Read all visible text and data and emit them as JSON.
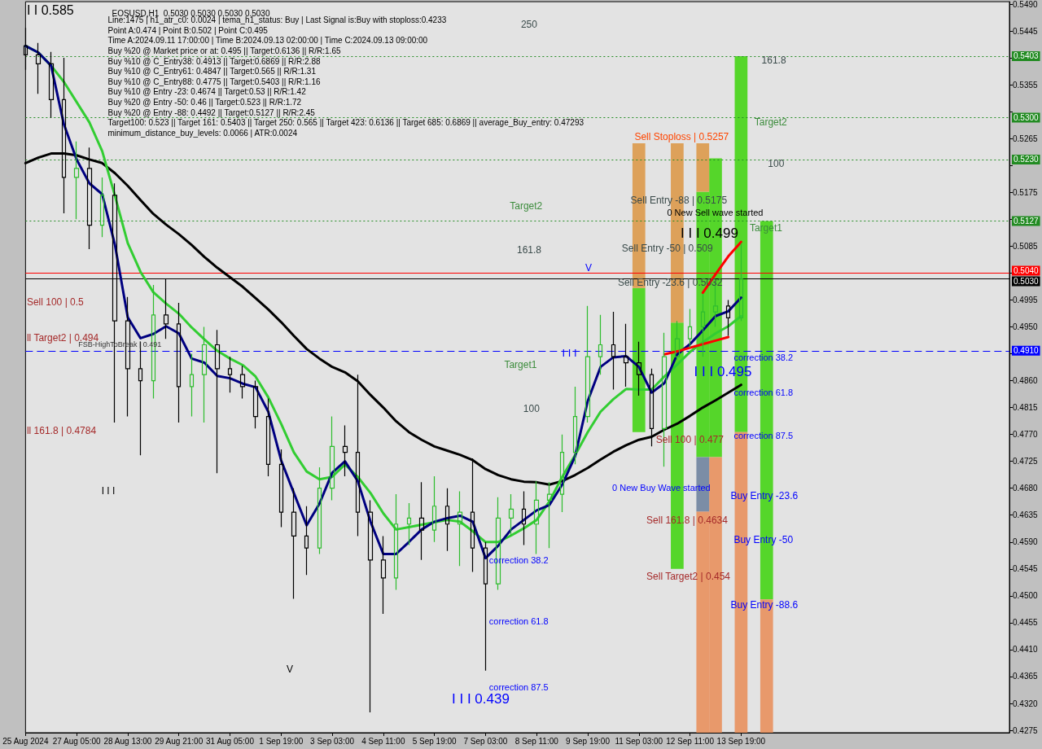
{
  "chart_data": {
    "type": "candlestick",
    "title": "EOSUSD,H1  0.5030 0.5030 0.5030 0.5030",
    "categories": [
      "25 Aug 2024",
      null,
      null,
      null,
      "27 Aug 05:00",
      null,
      null,
      null,
      "28 Aug 13:00",
      null,
      null,
      null,
      "29 Aug 21:00",
      null,
      null,
      null,
      "31 Aug 05:00",
      null,
      null,
      null,
      "1 Sep 19:00",
      null,
      null,
      null,
      "3 Sep 03:00",
      null,
      null,
      null,
      "4 Sep 11:00",
      null,
      null,
      null,
      "5 Sep 19:00",
      null,
      null,
      null,
      "7 Sep 03:00",
      null,
      null,
      null,
      "8 Sep 11:00",
      null,
      null,
      null,
      "9 Sep 19:00",
      null,
      null,
      null,
      "11 Sep 03:00",
      null,
      null,
      null,
      "12 Sep 11:00",
      null,
      null,
      null,
      "13 Sep 19:00",
      null,
      null,
      null,
      null,
      null,
      null,
      null,
      null,
      null,
      null,
      null,
      null,
      null,
      null,
      null,
      null,
      null,
      null,
      null,
      null,
      null
    ],
    "ohlc": [
      [
        0.542,
        0.545,
        0.538,
        0.5405
      ],
      [
        0.5405,
        0.5425,
        0.534,
        0.539
      ],
      [
        0.539,
        0.541,
        0.53,
        0.533
      ],
      [
        0.533,
        0.54,
        0.514,
        0.52
      ],
      [
        0.52,
        0.526,
        0.513,
        0.5215
      ],
      [
        0.5215,
        0.525,
        0.508,
        0.512
      ],
      [
        0.512,
        0.52,
        0.51,
        0.517
      ],
      [
        0.517,
        0.519,
        0.479,
        0.496
      ],
      [
        0.496,
        0.5,
        0.48,
        0.488
      ],
      [
        0.488,
        0.4925,
        0.4735,
        0.486
      ],
      [
        0.486,
        0.502,
        0.483,
        0.497
      ],
      [
        0.497,
        0.503,
        0.493,
        0.4955
      ],
      [
        0.4955,
        0.499,
        0.479,
        0.485
      ],
      [
        0.485,
        0.4905,
        0.48,
        0.487
      ],
      [
        0.487,
        0.495,
        0.479,
        0.492
      ],
      [
        0.492,
        0.4945,
        0.4705,
        0.488
      ],
      [
        0.488,
        0.49,
        0.484,
        0.487
      ],
      [
        0.487,
        0.4885,
        0.483,
        0.485
      ],
      [
        0.485,
        0.486,
        0.478,
        0.48
      ],
      [
        0.48,
        0.483,
        0.47,
        0.472
      ],
      [
        0.472,
        0.4745,
        0.4615,
        0.464
      ],
      [
        0.464,
        0.468,
        0.4495,
        0.46
      ],
      [
        0.46,
        0.465,
        0.4535,
        0.458
      ],
      [
        0.458,
        0.4715,
        0.457,
        0.468
      ],
      [
        0.468,
        0.48,
        0.466,
        0.475
      ],
      [
        0.475,
        0.4785,
        0.47,
        0.474
      ],
      [
        0.474,
        0.487,
        0.46,
        0.464
      ],
      [
        0.464,
        0.466,
        0.4305,
        0.456
      ],
      [
        0.456,
        0.46,
        0.447,
        0.453
      ],
      [
        0.453,
        0.467,
        0.451,
        0.462
      ],
      [
        0.462,
        0.4655,
        0.4585,
        0.463
      ],
      [
        0.463,
        0.469,
        0.456,
        0.461
      ],
      [
        0.461,
        0.47,
        0.459,
        0.465
      ],
      [
        0.465,
        0.468,
        0.4575,
        0.462
      ],
      [
        0.462,
        0.4675,
        0.455,
        0.464
      ],
      [
        0.464,
        0.473,
        0.454,
        0.458
      ],
      [
        0.458,
        0.459,
        0.4375,
        0.452
      ],
      [
        0.452,
        0.4665,
        0.451,
        0.463
      ],
      [
        0.463,
        0.467,
        0.46,
        0.4645
      ],
      [
        0.4645,
        0.4675,
        0.4585,
        0.462
      ],
      [
        0.462,
        0.4692,
        0.457,
        0.466
      ],
      [
        0.466,
        0.469,
        0.458,
        0.467
      ],
      [
        0.467,
        0.477,
        0.464,
        0.474
      ],
      [
        0.474,
        0.485,
        0.472,
        0.48
      ],
      [
        0.48,
        0.4985,
        0.479,
        0.49
      ],
      [
        0.49,
        0.497,
        0.487,
        0.492
      ],
      [
        0.492,
        0.4975,
        0.4845,
        0.49
      ],
      [
        0.49,
        0.4955,
        0.485,
        0.489
      ],
      [
        0.489,
        0.4925,
        0.4835,
        0.487
      ],
      [
        0.487,
        0.488,
        0.475,
        0.478
      ],
      [
        0.478,
        0.494,
        0.4716,
        0.49
      ],
      [
        0.49,
        0.496,
        0.4895,
        0.493
      ],
      [
        0.493,
        0.498,
        0.4915,
        0.495
      ],
      [
        0.495,
        0.5005,
        0.49,
        0.4975
      ],
      [
        0.4975,
        0.5025,
        0.495,
        0.4985
      ],
      [
        0.4985,
        0.4995,
        0.4935,
        0.4965
      ],
      [
        0.4965,
        0.509,
        0.496,
        0.503
      ],
      null,
      null,
      null,
      null,
      null,
      null,
      null,
      null,
      null,
      null,
      null,
      null,
      null,
      null,
      null,
      null,
      null,
      null,
      null,
      null,
      null
    ],
    "colors": [
      "#000000",
      "#000000",
      "#000000",
      "#000000",
      "#2ebd2e",
      "#000000",
      "#2ebd2e",
      "#000000",
      "#000000",
      "#000000",
      "#2ebd2e",
      "#000000",
      "#000000",
      "#2ebd2e",
      "#2ebd2e",
      "#000000",
      "#000000",
      "#000000",
      "#000000",
      "#000000",
      "#000000",
      "#000000",
      "#000000",
      "#2ebd2e",
      "#2ebd2e",
      "#000000",
      "#000000",
      "#000000",
      "#000000",
      "#2ebd2e",
      "#2ebd2e",
      "#000000",
      "#2ebd2e",
      "#000000",
      "#2ebd2e",
      "#000000",
      "#000000",
      "#2ebd2e",
      "#2ebd2e",
      "#000000",
      "#2ebd2e",
      "#2ebd2e",
      "#2ebd2e",
      "#2ebd2e",
      "#2ebd2e",
      "#2ebd2e",
      "#000000",
      "#000000",
      "#000000",
      "#000000",
      "#2ebd2e",
      "#2ebd2e",
      "#2ebd2e",
      "#2ebd2e",
      "#2ebd2e",
      "#000000",
      "#2ebd2e",
      null,
      null,
      null,
      null,
      null,
      null,
      null,
      null,
      null,
      null,
      null,
      null,
      null,
      null,
      null,
      null,
      null,
      null,
      null,
      null,
      null
    ],
    "series": [
      {
        "type": "bar",
        "color": "#55d62a",
        "base": [
          null,
          null,
          null,
          null,
          null,
          null,
          null,
          null,
          null,
          null,
          null,
          null,
          null,
          null,
          null,
          null,
          null,
          null,
          null,
          null,
          null,
          null,
          null,
          null,
          null,
          null,
          null,
          null,
          null,
          null,
          null,
          null,
          null,
          null,
          null,
          null,
          null,
          null,
          null,
          null,
          null,
          null,
          null,
          null,
          null,
          null,
          null,
          null,
          0.4774,
          null,
          null,
          0.4545,
          null,
          0.4732,
          0.4732,
          null,
          0.4774,
          null,
          0.4494,
          null,
          null,
          null,
          null,
          null,
          null,
          null,
          null,
          null,
          null,
          null,
          null,
          null,
          null,
          null,
          null,
          null,
          null,
          null
        ],
        "values": [
          null,
          null,
          null,
          null,
          null,
          null,
          null,
          null,
          null,
          null,
          null,
          null,
          null,
          null,
          null,
          null,
          null,
          null,
          null,
          null,
          null,
          null,
          null,
          null,
          null,
          null,
          null,
          null,
          null,
          null,
          null,
          null,
          null,
          null,
          null,
          null,
          null,
          null,
          null,
          null,
          null,
          null,
          null,
          null,
          null,
          null,
          null,
          null,
          0.0241,
          null,
          null,
          0.0412,
          null,
          0.0444,
          0.05,
          null,
          0.0629,
          null,
          0.0633,
          null,
          null,
          null,
          null,
          null,
          null,
          null,
          null,
          null,
          null,
          null,
          null,
          null,
          null,
          null,
          null,
          null,
          null,
          null
        ]
      },
      {
        "type": "bar",
        "color": "#dda15a",
        "base": [
          null,
          null,
          null,
          null,
          null,
          null,
          null,
          null,
          null,
          null,
          null,
          null,
          null,
          null,
          null,
          null,
          null,
          null,
          null,
          null,
          null,
          null,
          null,
          null,
          null,
          null,
          null,
          null,
          null,
          null,
          null,
          null,
          null,
          null,
          null,
          null,
          null,
          null,
          null,
          null,
          null,
          null,
          null,
          null,
          null,
          null,
          null,
          null,
          0.5015,
          null,
          null,
          0.4957,
          null,
          0.5176,
          null,
          null,
          null,
          null,
          null,
          null,
          null,
          null,
          null,
          null,
          null,
          null,
          null,
          null,
          null,
          null,
          null,
          null,
          null,
          null,
          null,
          null,
          null,
          null
        ],
        "values": [
          null,
          null,
          null,
          null,
          null,
          null,
          null,
          null,
          null,
          null,
          null,
          null,
          null,
          null,
          null,
          null,
          null,
          null,
          null,
          null,
          null,
          null,
          null,
          null,
          null,
          null,
          null,
          null,
          null,
          null,
          null,
          null,
          null,
          null,
          null,
          null,
          null,
          null,
          null,
          null,
          null,
          null,
          null,
          null,
          null,
          null,
          null,
          null,
          0.0242,
          null,
          null,
          0.03,
          null,
          0.0081,
          null,
          null,
          null,
          null,
          null,
          null,
          null,
          null,
          null,
          null,
          null,
          null,
          null,
          null,
          null,
          null,
          null,
          null,
          null,
          null,
          null,
          null,
          null,
          null
        ]
      },
      {
        "type": "bar",
        "color": "#e8996b",
        "base": [
          null,
          null,
          null,
          null,
          null,
          null,
          null,
          null,
          null,
          null,
          null,
          null,
          null,
          null,
          null,
          null,
          null,
          null,
          null,
          null,
          null,
          null,
          null,
          null,
          null,
          null,
          null,
          null,
          null,
          null,
          null,
          null,
          null,
          null,
          null,
          null,
          null,
          null,
          null,
          null,
          null,
          null,
          null,
          null,
          null,
          null,
          null,
          null,
          null,
          null,
          null,
          null,
          null,
          0.4271,
          0.4271,
          null,
          0.4271,
          null,
          0.4271,
          null,
          null,
          null,
          null,
          null,
          null,
          null,
          null,
          null,
          null,
          null,
          null,
          null,
          null,
          null,
          null,
          null,
          null,
          null
        ],
        "values": [
          null,
          null,
          null,
          null,
          null,
          null,
          null,
          null,
          null,
          null,
          null,
          null,
          null,
          null,
          null,
          null,
          null,
          null,
          null,
          null,
          null,
          null,
          null,
          null,
          null,
          null,
          null,
          null,
          null,
          null,
          null,
          null,
          null,
          null,
          null,
          null,
          null,
          null,
          null,
          null,
          null,
          null,
          null,
          null,
          null,
          null,
          null,
          null,
          null,
          null,
          null,
          null,
          null,
          0.037,
          0.0461,
          null,
          0.0503,
          null,
          0.0223,
          null,
          null,
          null,
          null,
          null,
          null,
          null,
          null,
          null,
          null,
          null,
          null,
          null,
          null,
          null,
          null,
          null,
          null,
          null
        ]
      },
      {
        "type": "bar",
        "color": "#7b8da6",
        "base": [
          null,
          null,
          null,
          null,
          null,
          null,
          null,
          null,
          null,
          null,
          null,
          null,
          null,
          null,
          null,
          null,
          null,
          null,
          null,
          null,
          null,
          null,
          null,
          null,
          null,
          null,
          null,
          null,
          null,
          null,
          null,
          null,
          null,
          null,
          null,
          null,
          null,
          null,
          null,
          null,
          null,
          null,
          null,
          null,
          null,
          null,
          null,
          null,
          null,
          null,
          null,
          null,
          null,
          0.4641,
          null,
          null,
          null,
          null,
          null,
          null,
          null,
          null,
          null,
          null,
          null,
          null,
          null,
          null,
          null,
          null,
          null,
          null,
          null,
          null,
          null,
          null,
          null,
          null
        ],
        "values": [
          null,
          null,
          null,
          null,
          null,
          null,
          null,
          null,
          null,
          null,
          null,
          null,
          null,
          null,
          null,
          null,
          null,
          null,
          null,
          null,
          null,
          null,
          null,
          null,
          null,
          null,
          null,
          null,
          null,
          null,
          null,
          null,
          null,
          null,
          null,
          null,
          null,
          null,
          null,
          null,
          null,
          null,
          null,
          null,
          null,
          null,
          null,
          null,
          null,
          null,
          null,
          null,
          null,
          0.0091,
          null,
          null,
          null,
          null,
          null,
          null,
          null,
          null,
          null,
          null,
          null,
          null,
          null,
          null,
          null,
          null,
          null,
          null,
          null,
          null,
          null,
          null,
          null,
          null
        ]
      },
      {
        "type": "line",
        "color": "#000000",
        "values": [
          0.5224,
          0.5233,
          0.524,
          0.524,
          0.5237,
          0.523,
          0.5224,
          0.5207,
          0.5186,
          0.5162,
          0.5139,
          0.5121,
          0.5105,
          0.5087,
          0.5067,
          0.5049,
          0.5033,
          0.5017,
          0.4998,
          0.4979,
          0.4958,
          0.4935,
          0.4913,
          0.4897,
          0.4883,
          0.4874,
          0.4859,
          0.4836,
          0.4815,
          0.4792,
          0.4774,
          0.4761,
          0.475,
          0.4743,
          0.4736,
          0.4727,
          0.4712,
          0.4702,
          0.4695,
          0.4691,
          0.469,
          0.4686,
          0.4692,
          0.4702,
          0.4714,
          0.4728,
          0.4741,
          0.4752,
          0.4761,
          0.4766,
          0.4778,
          0.4788,
          0.4801,
          0.4815,
          0.4827,
          0.484,
          0.4853,
          null,
          null,
          null,
          null,
          null,
          null,
          null,
          null,
          null,
          null,
          null,
          null,
          null,
          null,
          null,
          null,
          null,
          null,
          null,
          null,
          null
        ]
      },
      {
        "type": "line",
        "color": "#32cd32",
        "values": [
          0.542,
          0.5409,
          0.5387,
          0.536,
          0.5326,
          0.5292,
          0.5244,
          0.5169,
          0.509,
          0.5042,
          0.5008,
          0.4989,
          0.4972,
          0.4949,
          0.4929,
          0.491,
          0.4897,
          0.4886,
          0.4867,
          0.4832,
          0.4788,
          0.474,
          0.4708,
          0.4695,
          0.4699,
          0.472,
          0.4699,
          0.4672,
          0.4638,
          0.4611,
          0.4615,
          0.4619,
          0.4623,
          0.4627,
          0.4624,
          0.4608,
          0.459,
          0.459,
          0.4601,
          0.4613,
          0.4627,
          0.4658,
          0.4699,
          0.4735,
          0.4774,
          0.4808,
          0.4829,
          0.4846,
          0.4845,
          0.4845,
          0.4867,
          0.4887,
          0.4908,
          0.4924,
          0.4939,
          0.4951,
          0.4968,
          null,
          null,
          null,
          null,
          null,
          null,
          null,
          null,
          null,
          null,
          null,
          null,
          null,
          null,
          null,
          null,
          null,
          null,
          null,
          null,
          null
        ]
      },
      {
        "type": "line",
        "color": "#000080",
        "values": [
          0.542,
          0.5409,
          0.5387,
          0.5289,
          0.523,
          0.519,
          0.5172,
          0.5087,
          0.4966,
          0.4931,
          0.4938,
          0.4951,
          0.4939,
          0.4897,
          0.489,
          0.4868,
          0.4864,
          0.4855,
          0.4849,
          0.4808,
          0.4727,
          0.4672,
          0.4618,
          0.4654,
          0.4706,
          0.4725,
          0.4692,
          0.4624,
          0.457,
          0.457,
          0.459,
          0.4611,
          0.4624,
          0.463,
          0.4634,
          0.4624,
          0.4563,
          0.4584,
          0.4611,
          0.4627,
          0.4643,
          0.4652,
          0.4686,
          0.4733,
          0.4826,
          0.4883,
          0.4899,
          0.4901,
          0.4883,
          0.484,
          0.4856,
          0.4904,
          0.4921,
          0.4944,
          0.4968,
          0.4976,
          0.4999,
          null,
          null,
          null,
          null,
          null,
          null,
          null,
          null,
          null,
          null,
          null,
          null,
          null,
          null,
          null,
          null,
          null,
          null,
          null,
          null,
          null
        ]
      },
      {
        "type": "line",
        "color": "#ff0000",
        "values": [
          null,
          null,
          null,
          null,
          null,
          null,
          null,
          null,
          null,
          null,
          null,
          null,
          null,
          null,
          null,
          null,
          null,
          null,
          null,
          null,
          null,
          null,
          null,
          null,
          null,
          null,
          null,
          null,
          null,
          null,
          null,
          null,
          null,
          null,
          null,
          null,
          null,
          null,
          null,
          null,
          null,
          null,
          null,
          null,
          null,
          null,
          null,
          null,
          null,
          null,
          null,
          null,
          null,
          0.5007,
          0.5038,
          0.5068,
          0.5092,
          null,
          null,
          null,
          null,
          null,
          null,
          null,
          null,
          null,
          null,
          null,
          null,
          null,
          null,
          null,
          null,
          null,
          null,
          null,
          null,
          null
        ]
      },
      {
        "type": "line",
        "color": "#ff0000",
        "values": [
          null,
          null,
          null,
          null,
          null,
          null,
          null,
          null,
          null,
          null,
          null,
          null,
          null,
          null,
          null,
          null,
          null,
          null,
          null,
          null,
          null,
          null,
          null,
          null,
          null,
          null,
          null,
          null,
          null,
          null,
          null,
          null,
          null,
          null,
          null,
          null,
          null,
          null,
          null,
          null,
          null,
          null,
          null,
          null,
          null,
          null,
          null,
          null,
          null,
          null,
          0.4904,
          0.4909,
          0.4915,
          0.4921,
          0.4927,
          0.4933,
          null,
          null,
          null,
          null,
          null,
          null,
          null,
          null,
          null,
          null,
          null,
          null,
          null,
          null,
          null,
          null,
          null,
          null,
          null,
          null,
          null,
          null
        ]
      }
    ],
    "ylim": [
      0.4271,
      0.5494
    ],
    "yticks": [
      0.4275,
      {
        "value": 0.432,
        "label": "0.4320"
      },
      0.4365,
      {
        "value": 0.441,
        "label": "0.4410"
      },
      0.4455,
      {
        "value": 0.45,
        "label": "0.4500"
      },
      0.4545,
      {
        "value": 0.459,
        "label": "0.4590"
      },
      0.4635,
      {
        "value": 0.468,
        "label": "0.4680"
      },
      0.4725,
      {
        "value": 0.477,
        "label": "0.4770"
      },
      0.4815,
      {
        "value": 0.486,
        "label": "0.4860"
      },
      {
        "value": 0.4905,
        "label": null
      },
      {
        "value": 0.495,
        "label": "0.4950"
      },
      0.4995,
      {
        "value": 0.504,
        "label": null
      },
      0.5085,
      {
        "value": 0.513,
        "label": null
      },
      0.5175,
      {
        "value": 0.522,
        "label": null
      },
      0.5265,
      {
        "value": 0.531,
        "label": null
      },
      0.5355,
      {
        "value": 0.54,
        "label": null
      },
      0.5445,
      {
        "value": 0.549,
        "label": "0.5490"
      }
    ],
    "ref_lines": [
      {
        "axis": "y",
        "value": 0.5403,
        "label": "0.5403",
        "color": "#228b22",
        "line_style": "dotted"
      },
      {
        "axis": "y",
        "value": 0.53,
        "label": "0.5300",
        "color": "#228b22",
        "line_style": "dotted"
      },
      {
        "axis": "y",
        "value": 0.523,
        "label": "0.5230",
        "color": "#228b22",
        "line_style": "dotted"
      },
      {
        "axis": "y",
        "value": 0.5127,
        "label": "0.5127",
        "color": "#228b22",
        "line_style": "dotted"
      },
      {
        "axis": "y",
        "value": 0.504,
        "label": "0.5040",
        "color": "#ff0000",
        "line_style": "solid"
      },
      {
        "axis": "y",
        "value": 0.503,
        "label": "0.5030",
        "color": "#000000",
        "line_style": "solid"
      },
      {
        "axis": "y",
        "value": 0.491,
        "label": "0.4910",
        "color": "#0000ff",
        "line_style": "dashed"
      }
    ],
    "annotations": [
      "I I 0.585",
      "Line:1475 | h1_atr_c0: 0.0024 | tema_h1_status: Buy | Last Signal is:Buy with stoploss:0.4233",
      "Point A:0.474 | Point B:0.502 | Point C:0.495",
      "Time A:2024.09.11 17:00:00 | Time B:2024.09.13 02:00:00 | Time C:2024.09.13 09:00:00",
      "Buy %20 @ Market price or at: 0.495 || Target:0.6136 || R/R:1.65",
      "Buy %10 @ C_Entry38: 0.4913 || Target:0.6869 || R/R:2.88",
      "Buy %10 @ C_Entry61: 0.4847 || Target:0.565 || R/R:1.31",
      "Buy %10 @ C_Entry88: 0.4775 || Target:0.5403 || R/R:1.16",
      "Buy %10 @ Entry -23: 0.4674 || Target:0.53 || R/R:1.42",
      "Buy %20 @ Entry -50: 0.46 || Target:0.523 || R/R:1.72",
      "Buy %20 @ Entry -88: 0.4492 || Target:0.5127 || R/R:2.45",
      "Target100: 0.523 || Target 161: 0.5403 || Target 250: 0.565 || Target 423: 0.6136 || Target 685: 0.6869 || average_Buy_entry: 0.47293",
      "minimum_distance_buy_levels: 0.0066 | ATR:0.0024",
      "250",
      "Target2",
      "161.8",
      "Target1",
      "100",
      "161.8",
      "Target2",
      "100",
      "Target1",
      "Sell Stoploss | 0.5257",
      "Sell Entry -88 | 0.5175",
      "0 New Sell wave started",
      "I I I 0.499",
      "Sell Entry -50 | 0.509",
      "Sell Entry -23.6 | 0.5032",
      "I I I",
      "I I I 0.495",
      "correction 38.2",
      "correction 61.8",
      "correction 87.5",
      "Sell 100 | 0.477",
      "0 New Buy Wave started",
      "Sell 161.8 | 0.4634",
      "Buy Entry -23.6",
      "Buy Entry -50",
      "Sell Target2 | 0.454",
      "Buy Entry -88.6",
      "Sell 100 | 0.5",
      "ll Target2 | 0.494",
      "FSB-HighToBreak | 0.491",
      "ll 161.8 | 0.4784",
      "I I I",
      "correction 38.2",
      "correction 61.8",
      "correction 87.5",
      "I I I 0.439",
      "V",
      "V"
    ]
  }
}
